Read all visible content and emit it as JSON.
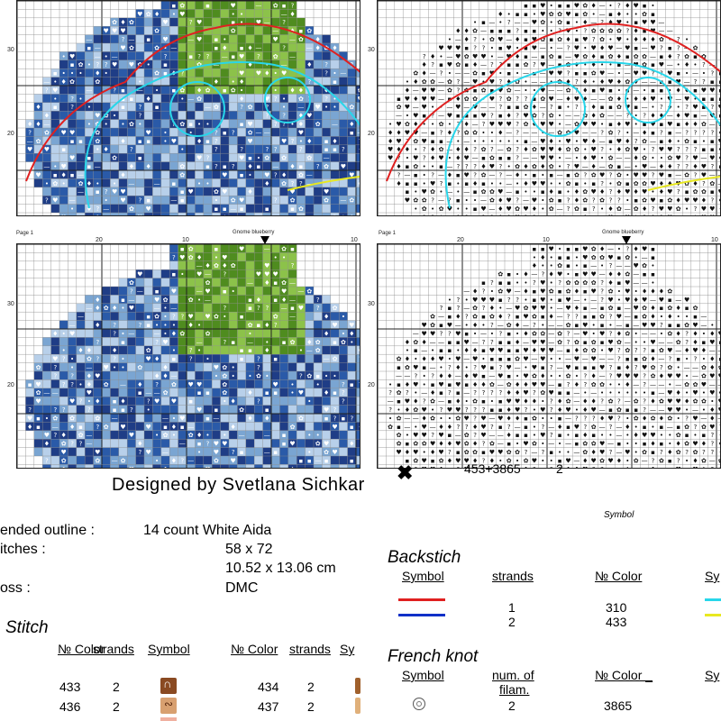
{
  "page_marker": "Page 1",
  "chart_title": "Gnome blueberry",
  "axes": {
    "left_labels": [
      "30",
      "20"
    ],
    "top_labels_left": [
      "20",
      "10"
    ],
    "top_labels_right": [
      "20",
      "10",
      "10"
    ]
  },
  "palette": {
    "dark_blue": "#1f3d86",
    "mid_blue": "#2a5aa8",
    "light_blue": "#7aa5d2",
    "pale_blue": "#b8d0ea",
    "green": "#4f8c1f",
    "light_green": "#8cc24a",
    "red_outline": "#e02020",
    "cyan_outline": "#28d6ea",
    "yellow_outline": "#e8e820"
  },
  "symbol_overlay": {
    "value": "453+3865",
    "strands": "2"
  },
  "designer": "Designed by Svetlana Sichkar",
  "info": {
    "rows": [
      {
        "label": "ended outline :",
        "value": "14 count White Aida"
      },
      {
        "label": "itches :",
        "value": "58 x 72"
      },
      {
        "label": "",
        "value": "10.52 x 13.06 cm"
      },
      {
        "label": "oss :",
        "value": "DMC"
      }
    ]
  },
  "symbol_caption": "Symbol",
  "backstitch": {
    "title": "Backstich",
    "headers": {
      "symbol": "Symbol",
      "strands": "strands",
      "color": "№ Color",
      "cut": "Sy"
    },
    "rows": [
      {
        "line_color": "#e02020",
        "strands": "1",
        "color": "310",
        "side_color": "#28d6ea"
      },
      {
        "line_color": "#1030c8",
        "strands": "2",
        "color": "433",
        "side_color": "#e8e820"
      }
    ]
  },
  "french_knot": {
    "title": "French knot",
    "headers": {
      "symbol": "Symbol",
      "num": "num. of",
      "num2": "filam.",
      "color": "№ Color _",
      "cut": "Sy"
    },
    "rows": [
      {
        "strands": "2",
        "color": "3865"
      }
    ]
  },
  "cross_stitch": {
    "title": "Stitch",
    "headers": {
      "color": "№ Color",
      "strands": "strands",
      "symbol": "Symbol",
      "color2": "№ Color",
      "strands2": "strands",
      "symbol2": "Sy"
    },
    "rows": [
      {
        "c1": "433",
        "s1": "2",
        "sym1_color": "#8a4a22",
        "c2": "434",
        "s2": "2",
        "sym2_color": "#a0602c"
      },
      {
        "c1": "436",
        "s1": "2",
        "sym1_color": "#d8a070",
        "c2": "437",
        "s2": "2",
        "sym2_color": "#e0b07a"
      }
    ]
  }
}
